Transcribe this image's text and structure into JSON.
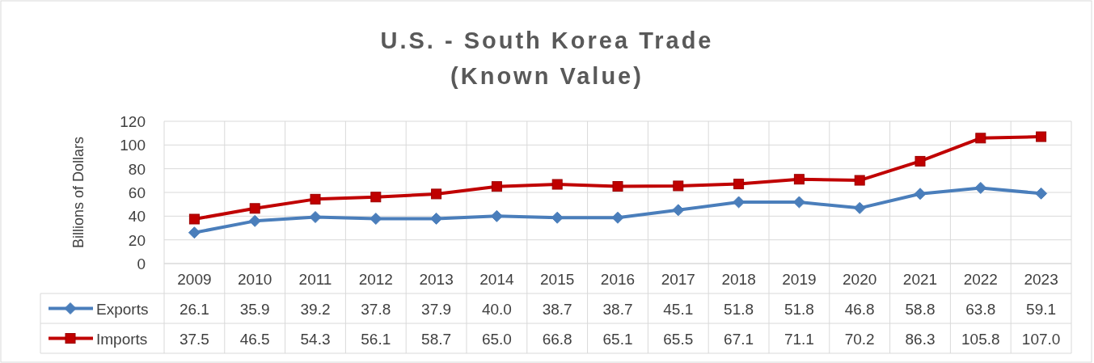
{
  "chart_data": {
    "type": "line",
    "title": "U.S. - South Korea Trade\n(Known Value)",
    "ylabel": "Billions of Dollars",
    "categories": [
      "2009",
      "2010",
      "2011",
      "2012",
      "2013",
      "2014",
      "2015",
      "2016",
      "2017",
      "2018",
      "2019",
      "2020",
      "2021",
      "2022",
      "2023"
    ],
    "series": [
      {
        "name": "Exports",
        "color": "#4a7ebb",
        "marker": "diamond",
        "values": [
          26.1,
          35.9,
          39.2,
          37.8,
          37.9,
          40.0,
          38.7,
          38.7,
          45.1,
          51.8,
          51.8,
          46.8,
          58.8,
          63.8,
          59.1
        ],
        "value_labels": [
          "26.1",
          "35.9",
          "39.2",
          "37.8",
          "37.9",
          "40.0",
          "38.7",
          "38.7",
          "45.1",
          "51.8",
          "51.8",
          "46.8",
          "58.8",
          "63.8",
          "59.1"
        ]
      },
      {
        "name": "Imports",
        "color": "#c00000",
        "marker": "square",
        "values": [
          37.5,
          46.5,
          54.3,
          56.1,
          58.7,
          65.0,
          66.8,
          65.1,
          65.5,
          67.1,
          71.1,
          70.2,
          86.3,
          105.8,
          107.0
        ],
        "value_labels": [
          "37.5",
          "46.5",
          "54.3",
          "56.1",
          "58.7",
          "65.0",
          "66.8",
          "65.1",
          "65.5",
          "67.1",
          "71.1",
          "70.2",
          "86.3",
          "105.8",
          "107.0"
        ]
      }
    ],
    "ylim": [
      0,
      120
    ],
    "yticks": [
      0,
      20,
      40,
      60,
      80,
      100,
      120
    ],
    "grid": true,
    "legend": "bottom left",
    "line_style": "solid"
  }
}
